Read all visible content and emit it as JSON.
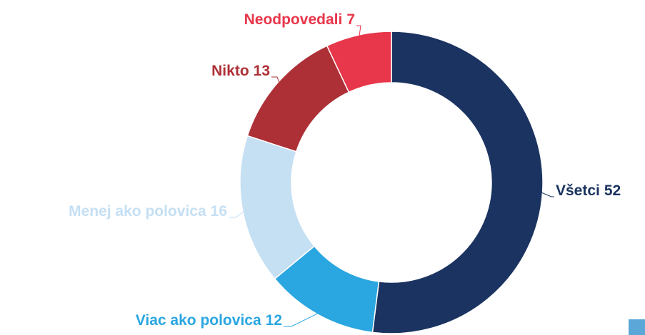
{
  "chart_data": {
    "type": "donut",
    "categories": [
      "Všetci",
      "Viac ako polovica",
      "Menej ako polovica",
      "Nikto",
      "Neodpovedali"
    ],
    "values": [
      52,
      12,
      16,
      13,
      7
    ],
    "colors": [
      "#1b3360",
      "#2aa6e0",
      "#c5dff3",
      "#ad3036",
      "#e8364b"
    ]
  }
}
